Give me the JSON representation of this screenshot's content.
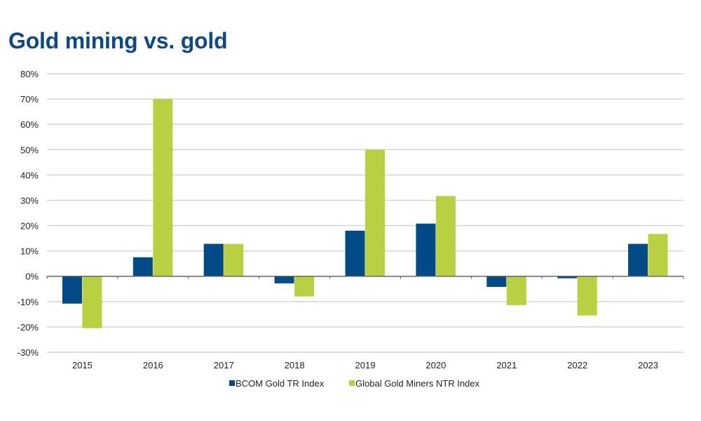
{
  "chart_data": {
    "type": "bar",
    "title": "Gold mining vs. gold",
    "xlabel": "",
    "ylabel": "",
    "categories": [
      "2015",
      "2016",
      "2017",
      "2018",
      "2019",
      "2020",
      "2021",
      "2022",
      "2023"
    ],
    "series": [
      {
        "name": "BCOM Gold TR Index",
        "color": "#004a87",
        "values": [
          -10.8,
          7.5,
          12.8,
          -2.8,
          18,
          20.8,
          -4.2,
          -0.8,
          12.8
        ]
      },
      {
        "name": "Global Gold Miners NTR Index",
        "color": "#bad043",
        "values": [
          -20.5,
          70,
          12.8,
          -8,
          50,
          31.7,
          -11.4,
          -15.5,
          16.7
        ]
      }
    ],
    "ylim": [
      -30,
      80
    ],
    "yticks": [
      -30,
      -20,
      -10,
      0,
      10,
      20,
      30,
      40,
      50,
      60,
      70,
      80
    ],
    "ytick_labels": [
      "-30%",
      "-20%",
      "-10%",
      "0%",
      "10%",
      "20%",
      "30%",
      "40%",
      "50%",
      "60%",
      "70%",
      "80%"
    ],
    "grid": true,
    "legend": "bottom"
  }
}
